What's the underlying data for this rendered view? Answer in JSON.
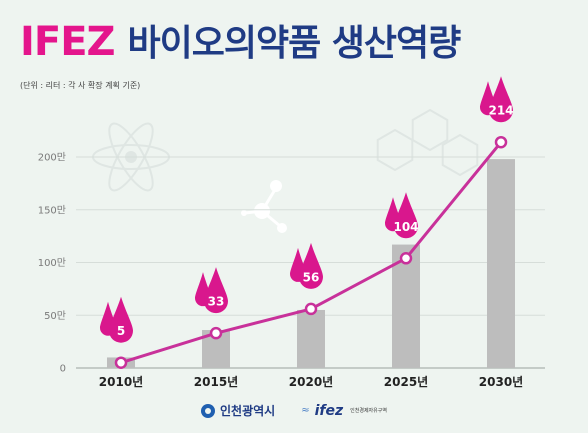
{
  "header": {
    "brand": "IFEZ",
    "title": "바이오의약품 생산역량",
    "unit_note": "(단위 : 리터 : 각 사 확장 계획 기준)"
  },
  "chart_data": {
    "type": "bar",
    "categories": [
      "2010년",
      "2015년",
      "2020년",
      "2025년",
      "2030년"
    ],
    "bar_values": [
      10,
      36,
      55,
      117,
      198
    ],
    "line_values": [
      5,
      33,
      56,
      104,
      214
    ],
    "data_labels": [
      "5",
      "33",
      "56",
      "104",
      "214"
    ],
    "y_ticks": [
      "0",
      "50만",
      "100만",
      "150만",
      "200만"
    ],
    "y_tick_values": [
      0,
      50,
      100,
      150,
      200
    ],
    "ylim": [
      0,
      200
    ],
    "grid": true,
    "colors": {
      "bar": "#bdbdbd",
      "line": "#c8319a",
      "drop": "#d9178d",
      "label": "#ffffff",
      "grid": "#d6ddd9",
      "axis_text": "#7a7a7a",
      "category_text": "#222222"
    }
  },
  "footer": {
    "logo1_text": "인천광역시",
    "logo2_text": "ifez",
    "logo2_sub": "인천경제자유구역"
  }
}
